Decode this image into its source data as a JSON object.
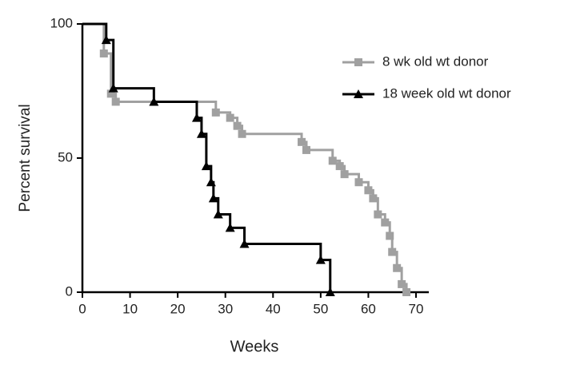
{
  "chart_data": {
    "type": "step",
    "x_label": "Weeks",
    "y_label": "Percent survival",
    "xlim": [
      0,
      70
    ],
    "xticks": [
      0,
      10,
      20,
      30,
      40,
      50,
      60,
      70
    ],
    "ylim": [
      0,
      100
    ],
    "yticks": [
      0,
      50,
      100
    ],
    "legend": "top-right",
    "series": [
      {
        "name": "8 wk old wt donor",
        "color": "#a0a0a0",
        "marker": "square",
        "x": [
          0,
          4.5,
          6,
          7,
          28,
          31,
          32.5,
          33.5,
          46,
          47,
          52.5,
          54,
          55,
          58,
          60,
          61,
          62,
          63.5,
          64.5,
          65,
          66,
          67,
          68
        ],
        "values": [
          100,
          89,
          74,
          71,
          67,
          65,
          62,
          59,
          56,
          53,
          49,
          47,
          44,
          41,
          38,
          35,
          29,
          26,
          21,
          15,
          9,
          3,
          0
        ]
      },
      {
        "name": "18 week old wt donor",
        "color": "#000000",
        "marker": "triangle",
        "x": [
          0,
          5,
          6.5,
          15,
          24,
          25,
          26,
          27,
          27.5,
          28.5,
          31,
          34,
          50,
          52
        ],
        "values": [
          100,
          94,
          76,
          71,
          65,
          59,
          47,
          41,
          35,
          29,
          24,
          18,
          12,
          0
        ]
      }
    ]
  }
}
